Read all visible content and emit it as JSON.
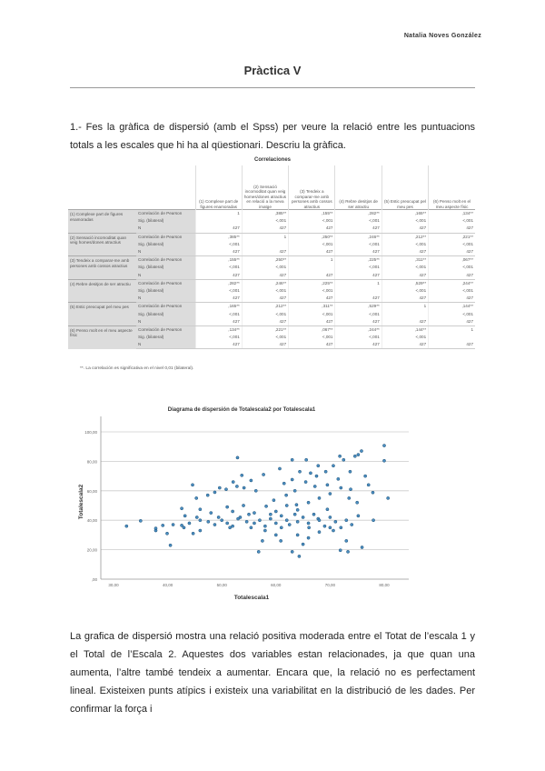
{
  "header": {
    "author": "Natalia Noves González"
  },
  "title": "Pràctica V",
  "question": "1.- Fes la gràfica de dispersió (amb el Spss) per veure la relació entre les puntuacions totals a les escales que hi ha al qüestionari. Descriu la gràfica.",
  "table": {
    "title": "Correlaciones",
    "columns": [
      "(1) Complexe part de figures enamoradas",
      "(2) Sensació incomoditat quan veig homes/dones atractius en relació a la meva imatge",
      "(3) Tendeix a comparar-me amb persones amb cossos atractius",
      "(4) Rebre desitjos de ser atractiu",
      "(5) Estic preocupat pel meu pes",
      "(6) Penso molt en el meu aspecte físic"
    ],
    "stat_labels": {
      "r": "Correlación de Pearson",
      "sig": "Sig. (bilateral)",
      "n": "N"
    },
    "rows": [
      {
        "label": "(1) Complexe part de figures enamoradas",
        "r": [
          "1",
          ",385**",
          ",155**",
          ",282**",
          ",165**",
          ",134**"
        ],
        "sig": [
          "",
          "<,001",
          "<,001",
          "<,001",
          "<,001",
          "<,001"
        ],
        "n": [
          "427",
          "427",
          "427",
          "427",
          "427",
          "427"
        ]
      },
      {
        "label": "(2) Sensació incomoditat quan veig homes/dones atractius",
        "r": [
          ",385**",
          "1",
          ",250**",
          ",246**",
          ",212**",
          ",221**"
        ],
        "sig": [
          "<,001",
          "",
          "<,001",
          "<,001",
          "<,001",
          "<,001"
        ],
        "n": [
          "427",
          "427",
          "427",
          "427",
          "427",
          "427"
        ]
      },
      {
        "label": "(3) Tendeix a comparar-me amb persones amb cossos atractius",
        "r": [
          ",155**",
          ",250**",
          "1",
          ",225**",
          ",311**",
          ",067**"
        ],
        "sig": [
          "<,001",
          "<,001",
          "",
          "<,001",
          "<,001",
          "<,001"
        ],
        "n": [
          "427",
          "427",
          "427",
          "427",
          "427",
          "427"
        ]
      },
      {
        "label": "(4) Rebre desitjos de ser atractiu",
        "r": [
          ",282**",
          ",246**",
          ",225**",
          "1",
          ",529**",
          ",244**"
        ],
        "sig": [
          "<,001",
          "<,001",
          "<,001",
          "",
          "<,001",
          "<,001"
        ],
        "n": [
          "427",
          "427",
          "427",
          "427",
          "427",
          "427"
        ]
      },
      {
        "label": "(5) Estic preocupat pel meu pes",
        "r": [
          ",165**",
          ",212**",
          ",311**",
          ",529**",
          "1",
          ",144**"
        ],
        "sig": [
          "<,001",
          "<,001",
          "<,001",
          "<,001",
          "",
          "<,001"
        ],
        "n": [
          "427",
          "427",
          "427",
          "427",
          "427",
          "427"
        ]
      },
      {
        "label": "(6) Penso molt en el meu aspecte físic",
        "r": [
          ",134**",
          ",221**",
          ",067**",
          ",244**",
          ",144**",
          "1"
        ],
        "sig": [
          "<,001",
          "<,001",
          "<,001",
          "<,001",
          "<,001",
          ""
        ],
        "n": [
          "427",
          "427",
          "427",
          "427",
          "427",
          "427"
        ]
      }
    ],
    "footnote": "**. La correlación es significativa en el nivel 0,01 (bilateral)."
  },
  "chart_data": {
    "type": "scatter",
    "title": "Diagrama de dispersión de Totalescala2 por Totalescala1",
    "xlabel": "Totalescala1",
    "ylabel": "Totalescala2",
    "xlim": [
      30,
      80
    ],
    "ylim": [
      0,
      100
    ],
    "xticks": [
      "30,00",
      "40,00",
      "50,00",
      "60,00",
      "70,00",
      "80,00"
    ],
    "yticks": [
      ",00",
      "20,00",
      "40,00",
      "60,00",
      "80,00",
      "100,00"
    ],
    "grid": "horizontal",
    "point_color": "#4a8ec2",
    "points": [
      [
        32.4,
        36
      ],
      [
        35,
        39.6
      ],
      [
        37.8,
        33
      ],
      [
        37.8,
        34.5
      ],
      [
        39.1,
        36.5
      ],
      [
        39.9,
        31
      ],
      [
        40.5,
        23
      ],
      [
        42.6,
        48
      ],
      [
        43.2,
        43
      ],
      [
        42.6,
        36.5
      ],
      [
        44.6,
        64
      ],
      [
        45.3,
        55
      ],
      [
        46,
        47.4
      ],
      [
        45.4,
        42
      ],
      [
        44.7,
        31
      ],
      [
        46,
        33
      ],
      [
        47.4,
        57
      ],
      [
        48.7,
        59
      ],
      [
        49.6,
        62
      ],
      [
        49.4,
        42
      ],
      [
        48.7,
        37
      ],
      [
        47.5,
        39
      ],
      [
        50.8,
        61
      ],
      [
        51,
        49
      ],
      [
        51.5,
        35
      ],
      [
        52.1,
        66
      ],
      [
        52.9,
        82.5
      ],
      [
        53.7,
        70.5
      ],
      [
        52.8,
        63
      ],
      [
        54.1,
        62
      ],
      [
        55.4,
        67
      ],
      [
        53.4,
        42
      ],
      [
        54.6,
        39
      ],
      [
        55.4,
        35
      ],
      [
        56.3,
        60
      ],
      [
        56.8,
        18.6
      ],
      [
        57.5,
        26
      ],
      [
        57.7,
        71
      ],
      [
        58.2,
        49.5
      ],
      [
        59,
        44
      ],
      [
        59.6,
        53.6
      ],
      [
        60.7,
        75
      ],
      [
        61,
        35
      ],
      [
        60.9,
        26
      ],
      [
        61.9,
        57
      ],
      [
        63,
        81
      ],
      [
        63,
        67.6
      ],
      [
        63,
        18.6
      ],
      [
        63.8,
        50.5
      ],
      [
        64.3,
        15.5
      ],
      [
        64.4,
        73
      ],
      [
        65,
        23.7
      ],
      [
        65.6,
        81
      ],
      [
        66.4,
        72
      ],
      [
        66.1,
        35
      ],
      [
        67.2,
        63
      ],
      [
        67.8,
        77
      ],
      [
        67.8,
        41
      ],
      [
        69.2,
        73
      ],
      [
        69.5,
        47.4
      ],
      [
        70.6,
        77
      ],
      [
        70.6,
        33
      ],
      [
        71.8,
        83.5
      ],
      [
        71.9,
        19.6
      ],
      [
        72.5,
        81
      ],
      [
        73,
        26
      ],
      [
        73.3,
        18.6
      ],
      [
        73.7,
        73
      ],
      [
        73.8,
        61
      ],
      [
        74.6,
        83.5
      ],
      [
        75.2,
        84.5
      ],
      [
        75.8,
        87
      ],
      [
        75.9,
        21.6
      ],
      [
        76.5,
        70
      ],
      [
        77.1,
        64
      ],
      [
        77.9,
        58.8
      ],
      [
        80,
        90.7
      ],
      [
        80,
        80.4
      ],
      [
        80.7,
        55
      ],
      [
        75.2,
        43
      ],
      [
        78,
        40
      ],
      [
        50,
        40
      ],
      [
        51,
        38
      ],
      [
        52,
        36
      ],
      [
        53,
        41
      ],
      [
        55,
        44
      ],
      [
        56,
        38
      ],
      [
        57,
        40
      ],
      [
        58,
        36
      ],
      [
        59,
        41
      ],
      [
        60,
        38
      ],
      [
        61,
        43
      ],
      [
        62,
        40
      ],
      [
        62.5,
        37
      ],
      [
        63.5,
        44
      ],
      [
        64,
        39
      ],
      [
        65,
        42
      ],
      [
        66,
        38
      ],
      [
        67,
        44
      ],
      [
        68,
        40
      ],
      [
        69,
        36
      ],
      [
        70,
        42
      ],
      [
        71,
        39
      ],
      [
        72,
        35
      ],
      [
        73,
        40
      ],
      [
        74,
        37
      ],
      [
        60,
        46
      ],
      [
        62,
        50
      ],
      [
        64,
        47
      ],
      [
        66,
        52
      ],
      [
        68,
        55
      ],
      [
        70,
        58
      ],
      [
        72,
        62
      ],
      [
        58,
        33
      ],
      [
        60,
        30
      ],
      [
        64,
        30
      ],
      [
        66,
        28
      ],
      [
        68,
        32
      ],
      [
        70,
        35
      ],
      [
        56,
        45
      ],
      [
        54,
        50
      ],
      [
        52,
        46
      ],
      [
        48,
        45
      ],
      [
        46,
        40
      ],
      [
        44,
        38
      ],
      [
        43,
        35
      ],
      [
        41,
        37
      ],
      [
        61.5,
        65
      ],
      [
        63.5,
        60
      ],
      [
        65.5,
        66
      ],
      [
        67.5,
        70
      ],
      [
        69.5,
        64
      ],
      [
        71.5,
        68
      ],
      [
        73.5,
        55
      ],
      [
        75,
        52
      ]
    ]
  },
  "conclusion": "La grafica de dispersió mostra una relació positiva moderada entre el Totat de l’escala 1 y el Total de l’Escala 2.  Aquestes dos variables estan relacionades, ja que quan una aumenta, l’altre també tendeix a aumentar. Encara que, la relació no es perfectament lineal. Existeixen punts atípics i existeix una variabilitat en la distribució de les dades. Per confirmar la força i"
}
